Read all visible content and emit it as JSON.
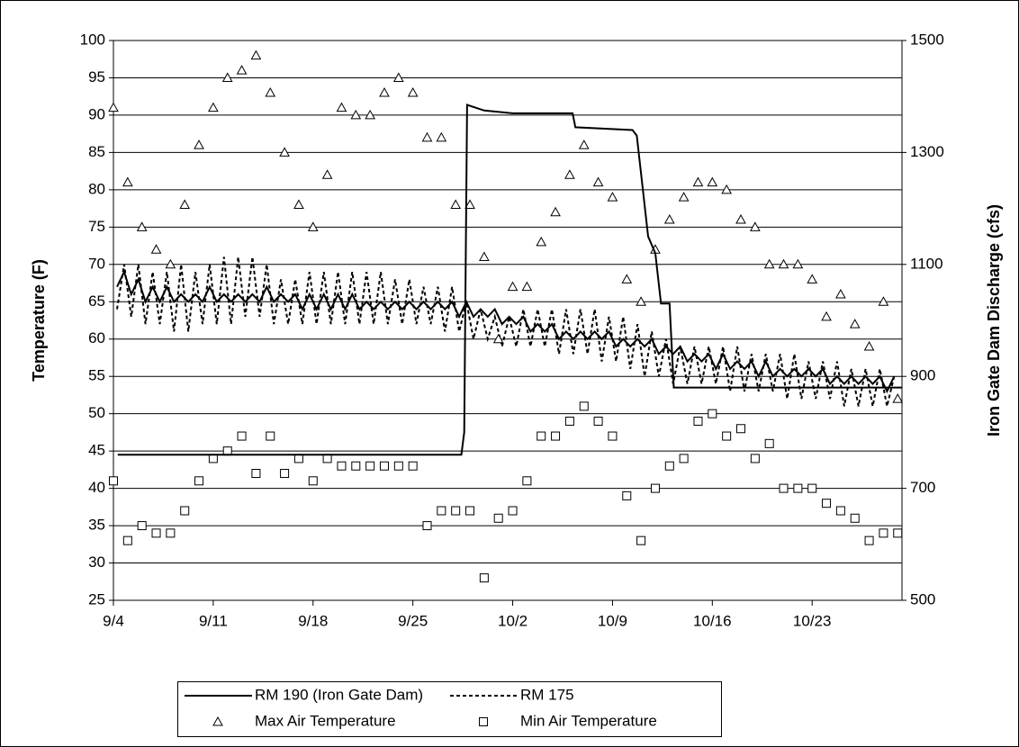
{
  "chart_data": {
    "type": "line",
    "y_label": "Temperature (F)",
    "y2_label": "Iron Gate Dam Discharge (cfs)",
    "xlim": [
      0,
      55.3
    ],
    "xticks": [
      {
        "value": 0,
        "label": "9/4"
      },
      {
        "value": 7,
        "label": "9/11"
      },
      {
        "value": 14,
        "label": "9/18"
      },
      {
        "value": 21,
        "label": "9/25"
      },
      {
        "value": 28,
        "label": "10/2"
      },
      {
        "value": 35,
        "label": "10/9"
      },
      {
        "value": 42,
        "label": "10/16"
      },
      {
        "value": 49,
        "label": "10/23"
      }
    ],
    "ylim": [
      25,
      100
    ],
    "yticks": [
      25,
      30,
      35,
      40,
      45,
      50,
      55,
      60,
      65,
      70,
      75,
      80,
      85,
      90,
      95,
      100
    ],
    "y2lim": [
      500,
      1500
    ],
    "y2ticks": [
      500,
      700,
      900,
      1100,
      1300,
      1500
    ],
    "grid": true,
    "legend": "bottom",
    "series": [
      {
        "name": "RM 190 (Iron Gate Dam)",
        "color": "#000000",
        "style": "solid",
        "x": [
          0.25,
          0.75,
          1.25,
          1.75,
          2.25,
          2.75,
          3.25,
          3.75,
          4.25,
          4.75,
          5.25,
          5.75,
          6.25,
          6.75,
          7.25,
          7.75,
          8.25,
          8.75,
          9.25,
          9.75,
          10.25,
          10.75,
          11.25,
          11.75,
          12.25,
          12.75,
          13.25,
          13.75,
          14.25,
          14.75,
          15.25,
          15.75,
          16.25,
          16.75,
          17.25,
          17.75,
          18.25,
          18.75,
          19.25,
          19.75,
          20.25,
          20.75,
          21.25,
          21.75,
          22.25,
          22.75,
          23.25,
          23.75,
          24.25,
          24.75,
          25.25,
          25.75,
          26.25,
          26.75,
          27.25,
          27.75,
          28.25,
          28.75,
          29.25,
          29.75,
          30.25,
          30.75,
          31.25,
          31.75,
          32.25,
          32.75,
          33.25,
          33.75,
          34.25,
          34.75,
          35.25,
          35.75,
          36.25,
          36.75,
          37.25,
          37.75,
          38.25,
          38.75,
          39.25,
          39.75,
          40.25,
          40.75,
          41.25,
          41.75,
          42.25,
          42.75,
          43.25,
          43.75,
          44.25,
          44.75,
          45.25,
          45.75,
          46.25,
          46.75,
          47.25,
          47.75,
          48.25,
          48.75,
          49.25,
          49.75,
          50.25,
          50.75,
          51.25,
          51.75,
          52.25,
          52.75,
          53.25,
          53.75,
          54.25,
          54.75
        ],
        "values": [
          67,
          69,
          66,
          68,
          65,
          67,
          65,
          67,
          65,
          66,
          65,
          66,
          65,
          67,
          65,
          66,
          65,
          66,
          65,
          66,
          65,
          67,
          65,
          66,
          65,
          66,
          64,
          66,
          64,
          66,
          64,
          66,
          64,
          66,
          64,
          65,
          64,
          65,
          64,
          65,
          64,
          65,
          64,
          65,
          64,
          65,
          64,
          65,
          63,
          65,
          63,
          64,
          63,
          64,
          62,
          63,
          62,
          63,
          61,
          62,
          61,
          62,
          60,
          61,
          60,
          61,
          60,
          61,
          60,
          61,
          59,
          60,
          59,
          60,
          59,
          60,
          58,
          59,
          58,
          59,
          57,
          58,
          57,
          58,
          56,
          58,
          56,
          57,
          56,
          57,
          55,
          57,
          55,
          56,
          55,
          56,
          55,
          56,
          55,
          56,
          54,
          55,
          54,
          55,
          54,
          55,
          54,
          55,
          53,
          55
        ]
      },
      {
        "name": "RM 175",
        "color": "#000000",
        "style": "dashed",
        "x": [
          0.25,
          0.75,
          1.25,
          1.75,
          2.25,
          2.75,
          3.25,
          3.75,
          4.25,
          4.75,
          5.25,
          5.75,
          6.25,
          6.75,
          7.25,
          7.75,
          8.25,
          8.75,
          9.25,
          9.75,
          10.25,
          10.75,
          11.25,
          11.75,
          12.25,
          12.75,
          13.25,
          13.75,
          14.25,
          14.75,
          15.25,
          15.75,
          16.25,
          16.75,
          17.25,
          17.75,
          18.25,
          18.75,
          19.25,
          19.75,
          20.25,
          20.75,
          21.25,
          21.75,
          22.25,
          22.75,
          23.25,
          23.75,
          24.25,
          24.75,
          25.25,
          25.75,
          26.25,
          26.75,
          27.25,
          27.75,
          28.25,
          28.75,
          29.25,
          29.75,
          30.25,
          30.75,
          31.25,
          31.75,
          32.25,
          32.75,
          33.25,
          33.75,
          34.25,
          34.75,
          35.25,
          35.75,
          36.25,
          36.75,
          37.25,
          37.75,
          38.25,
          38.75,
          39.25,
          39.75,
          40.25,
          40.75,
          41.25,
          41.75,
          42.25,
          42.75,
          43.25,
          43.75,
          44.25,
          44.75,
          45.25,
          45.75,
          46.25,
          46.75,
          47.25,
          47.75,
          48.25,
          48.75,
          49.25,
          49.75,
          50.25,
          50.75,
          51.25,
          51.75,
          52.25,
          52.75,
          53.25,
          53.75,
          54.25,
          54.75
        ],
        "values": [
          64,
          70,
          63,
          70,
          62,
          69,
          62,
          69,
          61,
          70,
          61,
          69,
          62,
          70,
          62,
          71,
          62,
          71,
          63,
          71,
          63,
          70,
          62,
          68,
          62,
          68,
          62,
          69,
          62,
          69,
          62,
          69,
          62,
          69,
          62,
          69,
          62,
          69,
          62,
          68,
          62,
          68,
          62,
          67,
          62,
          67,
          61,
          67,
          61,
          65,
          60,
          64,
          60,
          63,
          59,
          63,
          59,
          64,
          59,
          64,
          59,
          64,
          58,
          64,
          58,
          64,
          58,
          64,
          57,
          63,
          57,
          63,
          56,
          62,
          55,
          61,
          55,
          60,
          54,
          59,
          54,
          59,
          54,
          59,
          54,
          59,
          53,
          59,
          53,
          58,
          53,
          58,
          53,
          58,
          52,
          58,
          52,
          57,
          52,
          57,
          52,
          57,
          51,
          56,
          51,
          56,
          51,
          56,
          51,
          55
        ]
      },
      {
        "name": "Max Air Temperature",
        "color": "#000000",
        "marker": "triangle",
        "x": [
          0,
          1,
          2,
          3,
          4,
          5,
          6,
          7,
          8,
          9,
          10,
          11,
          12,
          13,
          14,
          15,
          16,
          17,
          18,
          19,
          20,
          21,
          22,
          23,
          24,
          25,
          26,
          27,
          28,
          29,
          30,
          31,
          32,
          33,
          34,
          35,
          36,
          37,
          38,
          39,
          40,
          41,
          42,
          43,
          44,
          45,
          46,
          47,
          48,
          49,
          50,
          51,
          52,
          53,
          54,
          55
        ],
        "values": [
          91,
          81,
          75,
          72,
          70,
          78,
          86,
          91,
          95,
          96,
          98,
          93,
          85,
          78,
          75,
          82,
          91,
          90,
          90,
          93,
          95,
          93,
          87,
          87,
          78,
          78,
          71,
          60,
          67,
          67,
          73,
          77,
          82,
          86,
          81,
          79,
          68,
          65,
          72,
          76,
          79,
          81,
          81,
          80,
          76,
          75,
          70,
          70,
          70,
          68,
          63,
          66,
          62,
          59,
          65,
          52
        ]
      },
      {
        "name": "Min Air Temperature",
        "color": "#000000",
        "marker": "square",
        "x": [
          0,
          1,
          2,
          3,
          4,
          5,
          6,
          7,
          8,
          9,
          10,
          11,
          12,
          13,
          14,
          15,
          16,
          17,
          18,
          19,
          20,
          21,
          22,
          23,
          24,
          25,
          26,
          27,
          28,
          29,
          30,
          31,
          32,
          33,
          34,
          35,
          36,
          37,
          38,
          39,
          40,
          41,
          42,
          43,
          44,
          45,
          46,
          47,
          48,
          49,
          50,
          51,
          52,
          53,
          54,
          55
        ],
        "values": [
          41,
          33,
          35,
          34,
          34,
          37,
          41,
          44,
          45,
          47,
          42,
          47,
          42,
          44,
          41,
          44,
          43,
          43,
          43,
          43,
          43,
          43,
          35,
          37,
          37,
          37,
          28,
          36,
          37,
          41,
          47,
          47,
          49,
          51,
          49,
          47,
          39,
          33,
          40,
          43,
          44,
          49,
          50,
          47,
          48,
          44,
          46,
          40,
          40,
          40,
          38,
          37,
          36,
          33,
          34,
          34
        ]
      },
      {
        "color": "#000000",
        "style": "solid",
        "axis": "y2",
        "x": [
          0.3,
          24.4,
          24.6,
          24.8,
          26,
          28,
          32.2,
          32.4,
          36.4,
          36.7,
          37.5,
          38,
          38.4,
          39,
          39.3,
          55.3
        ],
        "values": [
          760,
          760,
          800,
          1385,
          1375,
          1370,
          1370,
          1345,
          1340,
          1330,
          1150,
          1120,
          1030,
          1030,
          880,
          880
        ]
      }
    ]
  }
}
